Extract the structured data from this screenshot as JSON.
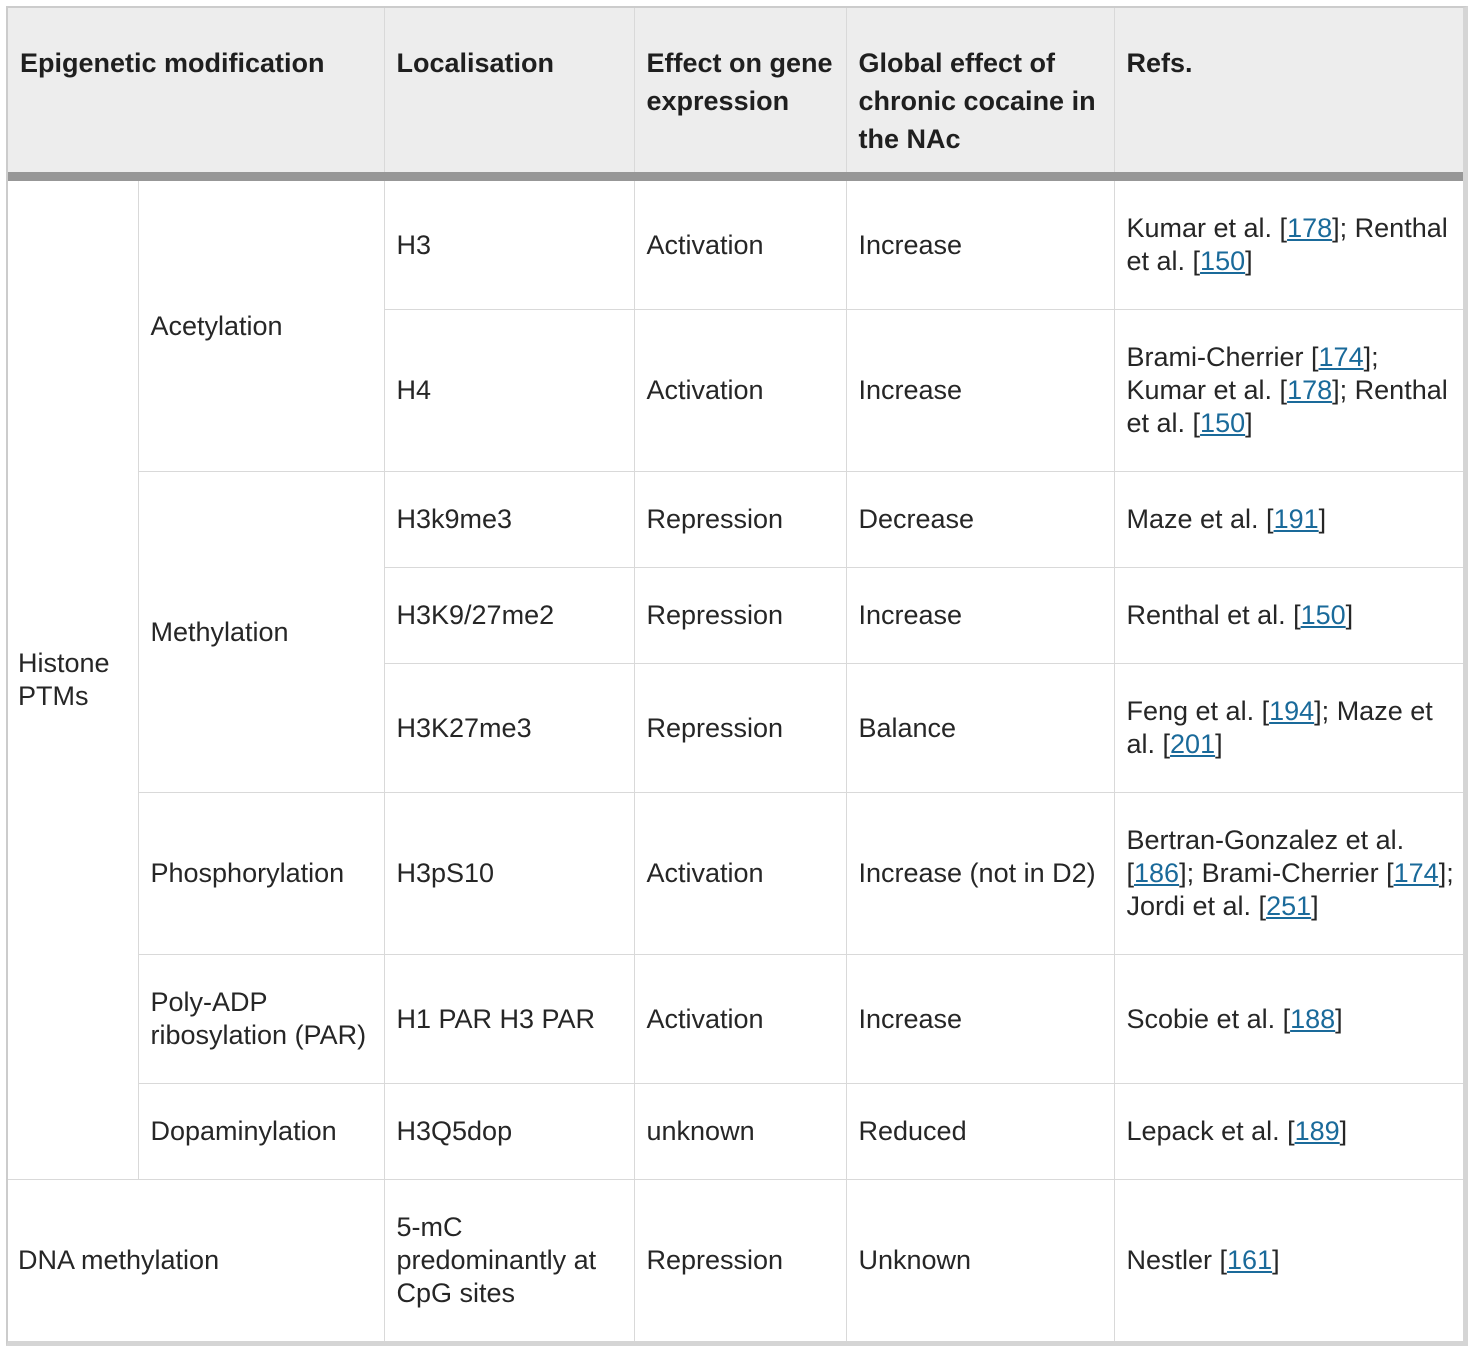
{
  "header": {
    "columns": [
      "Epigenetic modification",
      "Localisation",
      "Effect on gene expression",
      "Global effect of chronic cocaine in the NAc",
      "Refs."
    ]
  },
  "colors": {
    "link": "#1a6a9a",
    "header_bg": "#ededed",
    "cell_border": "#d9d9d9",
    "header_rule": "#979797",
    "text": "#262626"
  },
  "refs_format": {
    "separator": "; ",
    "open": "[",
    "close": "]"
  },
  "rows": [
    {
      "group": "Histone PTMs",
      "group_rowspan": 8,
      "sub": "Acetylation",
      "sub_rowspan": 2,
      "localisation": "H3",
      "effect": "Activation",
      "global_effect": "Increase",
      "refs": [
        {
          "name": "Kumar et al.",
          "num": "178"
        },
        {
          "name": "Renthal et al.",
          "num": "150"
        }
      ]
    },
    {
      "localisation": "H4",
      "effect": "Activation",
      "global_effect": "Increase",
      "refs": [
        {
          "name": "Brami-Cherrier",
          "num": "174"
        },
        {
          "name": "Kumar et al.",
          "num": "178"
        },
        {
          "name": "Renthal et al.",
          "num": "150"
        }
      ]
    },
    {
      "sub": "Methylation",
      "sub_rowspan": 3,
      "localisation": "H3k9me3",
      "effect": "Repression",
      "global_effect": "Decrease",
      "refs": [
        {
          "name": "Maze et al.",
          "num": "191"
        }
      ]
    },
    {
      "localisation": "H3K9/27me2",
      "effect": "Repression",
      "global_effect": "Increase",
      "refs": [
        {
          "name": "Renthal et al.",
          "num": "150"
        }
      ]
    },
    {
      "localisation": "H3K27me3",
      "effect": "Repression",
      "global_effect": "Balance",
      "refs": [
        {
          "name": "Feng et al.",
          "num": "194"
        },
        {
          "name": "Maze et al.",
          "num": "201"
        }
      ]
    },
    {
      "sub": "Phosphorylation",
      "sub_rowspan": 1,
      "localisation": "H3pS10",
      "effect": "Activation",
      "global_effect": "Increase (not in D2)",
      "refs": [
        {
          "name": "Bertran-Gonzalez et al.",
          "num": "186"
        },
        {
          "name": "Brami-Cherrier",
          "num": "174"
        },
        {
          "name": "Jordi et al.",
          "num": "251"
        }
      ]
    },
    {
      "sub": "Poly-ADP ribosylation (PAR)",
      "sub_rowspan": 1,
      "localisation": "H1 PAR H3 PAR",
      "effect": "Activation",
      "global_effect": "Increase",
      "refs": [
        {
          "name": "Scobie et al.",
          "num": "188"
        }
      ]
    },
    {
      "sub": "Dopaminylation",
      "sub_rowspan": 1,
      "localisation": "H3Q5dop",
      "effect": "unknown",
      "global_effect": "Reduced",
      "refs": [
        {
          "name": "Lepack et al.",
          "num": "189"
        }
      ]
    },
    {
      "group": "DNA methylation",
      "group_colspan": 2,
      "localisation": "5-mC predominantly at CpG sites",
      "effect": "Repression",
      "global_effect": "Unknown",
      "refs": [
        {
          "name": "Nestler",
          "num": "161"
        }
      ]
    }
  ]
}
